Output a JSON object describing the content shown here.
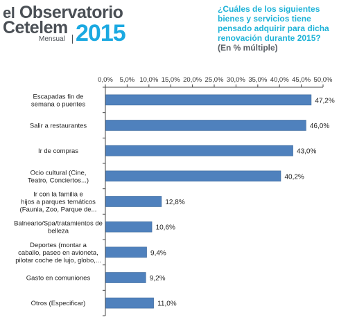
{
  "logo": {
    "line1_prefix": "el",
    "line1": "Observatorio",
    "line2": "Cetelem",
    "sub": "Mensual",
    "year": "2015"
  },
  "question": {
    "text": "¿Cuáles de los siguientes bienes y servicios tiene pensado adquirir para dicha renovación durante 2015?",
    "note": "(En % múltiple)"
  },
  "chart_data": {
    "type": "bar",
    "orientation": "horizontal",
    "title": "",
    "xlabel": "",
    "ylabel": "",
    "xlim": [
      0,
      50
    ],
    "xticks": [
      "0,0%",
      "5,0%",
      "10,0%",
      "15,0%",
      "20,0%",
      "25,0%",
      "30,0%",
      "35,0%",
      "40,0%",
      "45,0%",
      "50,0%"
    ],
    "grid": false,
    "bar_color": "#4f81bd",
    "categories": [
      [
        "Escapadas fin de",
        "semana o puentes"
      ],
      [
        "Salir a restaurantes"
      ],
      [
        "Ir de compras"
      ],
      [
        "Ocio cultural (Cine,",
        "Teatro, Conciertos...)"
      ],
      [
        "Ir con la familia e",
        "hijos a parques temáticos",
        "(Faunia, Zoo, Parque de..."
      ],
      [
        "Balneario/Spa/tratamientos de",
        "belleza"
      ],
      [
        "Deportes (montar a",
        "caballo, paseo en avioneta,",
        "pilotar coche de lujo, globo,..."
      ],
      [
        "Gasto en comuniones"
      ],
      [
        "Otros (Especificar)"
      ]
    ],
    "values": [
      47.2,
      46.0,
      43.0,
      40.2,
      12.8,
      10.6,
      9.4,
      9.2,
      11.0
    ],
    "value_labels": [
      "47,2%",
      "46,0%",
      "43,0%",
      "40,2%",
      "12,8%",
      "10,6%",
      "9,4%",
      "9,2%",
      "11,0%"
    ]
  }
}
